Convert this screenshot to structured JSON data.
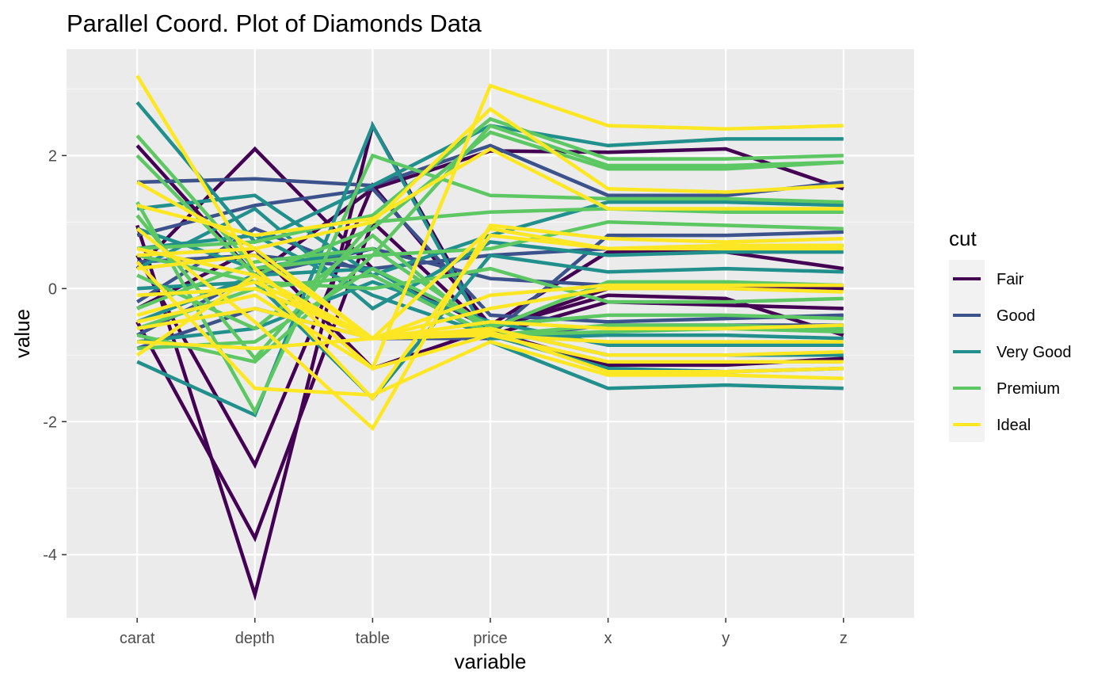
{
  "chart_data": {
    "type": "line",
    "title": "Parallel Coord. Plot of Diamonds Data",
    "xlabel": "variable",
    "ylabel": "value",
    "categories": [
      "carat",
      "depth",
      "table",
      "price",
      "x",
      "y",
      "z"
    ],
    "ylim": [
      -4.95,
      3.6
    ],
    "yticks": [
      -4,
      -2,
      0,
      2
    ],
    "ytick_labels": [
      "-4",
      "-2",
      "0",
      "2"
    ],
    "grid": true,
    "legend": {
      "title": "cut",
      "placement": "right",
      "entries": [
        "Fair",
        "Good",
        "Very Good",
        "Premium",
        "Ideal"
      ]
    },
    "colors": {
      "Fair": "#440154",
      "Good": "#3b528b",
      "Very Good": "#21908c",
      "Premium": "#5dc863",
      "Ideal": "#fde725",
      "panel": "#ebebeb",
      "grid_major": "#ffffff"
    },
    "series": [
      {
        "group": "Fair",
        "values": [
          2.15,
          0.2,
          1.5,
          2.07,
          2.05,
          2.1,
          1.5
        ]
      },
      {
        "group": "Fair",
        "values": [
          0.3,
          2.1,
          0.3,
          -0.6,
          -0.1,
          -0.15,
          -0.7
        ]
      },
      {
        "group": "Fair",
        "values": [
          0.95,
          -4.6,
          2.45,
          -0.7,
          -0.2,
          -0.25,
          -0.3
        ]
      },
      {
        "group": "Fair",
        "values": [
          -0.5,
          -3.75,
          1.0,
          -0.65,
          -1.15,
          -1.15,
          -1.05
        ]
      },
      {
        "group": "Fair",
        "values": [
          0.5,
          -2.65,
          1.55,
          -0.55,
          0.55,
          0.55,
          0.3
        ]
      },
      {
        "group": "Fair",
        "values": [
          -0.3,
          0.6,
          -1.2,
          -0.6,
          0.0,
          0.0,
          0.0
        ]
      },
      {
        "group": "Good",
        "values": [
          1.6,
          1.65,
          1.55,
          2.15,
          1.4,
          1.4,
          1.6
        ]
      },
      {
        "group": "Good",
        "values": [
          0.8,
          1.25,
          1.5,
          -0.4,
          -0.5,
          -0.45,
          -0.4
        ]
      },
      {
        "group": "Good",
        "values": [
          -0.2,
          0.9,
          0.2,
          -0.7,
          0.8,
          0.8,
          0.85
        ]
      },
      {
        "group": "Good",
        "values": [
          -0.9,
          -0.3,
          -0.75,
          -0.75,
          -0.55,
          -0.55,
          -0.55
        ]
      },
      {
        "group": "Good",
        "values": [
          0.4,
          0.5,
          0.3,
          0.5,
          0.6,
          0.6,
          0.65
        ]
      },
      {
        "group": "Good",
        "values": [
          -0.7,
          0.2,
          0.6,
          0.15,
          0.05,
          0.05,
          0.05
        ]
      },
      {
        "group": "Very Good",
        "values": [
          2.8,
          0.7,
          1.55,
          2.45,
          2.15,
          2.25,
          2.25
        ]
      },
      {
        "group": "Very Good",
        "values": [
          1.2,
          1.4,
          0.2,
          0.8,
          1.3,
          1.3,
          1.25
        ]
      },
      {
        "group": "Very Good",
        "values": [
          -1.1,
          -1.9,
          2.45,
          -0.8,
          -1.5,
          -1.45,
          -1.5
        ]
      },
      {
        "group": "Very Good",
        "values": [
          0.6,
          0.8,
          -0.1,
          -0.7,
          -1.2,
          -1.25,
          -1.2
        ]
      },
      {
        "group": "Very Good",
        "values": [
          0.0,
          0.1,
          -1.65,
          0.5,
          0.25,
          0.3,
          0.25
        ]
      },
      {
        "group": "Very Good",
        "values": [
          -0.8,
          -0.6,
          0.1,
          -0.5,
          -0.85,
          -0.85,
          -0.85
        ]
      },
      {
        "group": "Very Good",
        "values": [
          0.9,
          0.3,
          0.6,
          -0.6,
          -1.0,
          -1.0,
          -1.0
        ]
      },
      {
        "group": "Very Good",
        "values": [
          -0.5,
          0.2,
          0.3,
          -0.75,
          -0.7,
          -0.7,
          -0.75
        ]
      },
      {
        "group": "Very Good",
        "values": [
          0.3,
          1.2,
          -0.3,
          0.7,
          0.5,
          0.55,
          0.55
        ]
      },
      {
        "group": "Premium",
        "values": [
          2.3,
          0.3,
          0.5,
          2.45,
          1.85,
          1.85,
          1.9
        ]
      },
      {
        "group": "Premium",
        "values": [
          2.0,
          0.2,
          0.9,
          2.35,
          1.8,
          1.8,
          1.9
        ]
      },
      {
        "group": "Premium",
        "values": [
          1.3,
          -1.85,
          2.0,
          1.4,
          1.35,
          1.35,
          1.3
        ]
      },
      {
        "group": "Premium",
        "values": [
          1.1,
          -1.05,
          1.0,
          1.15,
          1.2,
          1.15,
          1.15
        ]
      },
      {
        "group": "Premium",
        "values": [
          0.6,
          0.7,
          1.1,
          2.55,
          1.95,
          1.95,
          2.0
        ]
      },
      {
        "group": "Premium",
        "values": [
          -0.7,
          -1.1,
          0.5,
          0.6,
          1.0,
          0.95,
          0.9
        ]
      },
      {
        "group": "Premium",
        "values": [
          -0.9,
          -0.8,
          0.3,
          -0.55,
          -0.4,
          -0.4,
          -0.45
        ]
      },
      {
        "group": "Premium",
        "values": [
          0.2,
          -0.6,
          0.8,
          -0.7,
          -0.55,
          -0.55,
          -0.6
        ]
      },
      {
        "group": "Premium",
        "values": [
          0.5,
          0.1,
          0.0,
          0.3,
          -0.2,
          -0.2,
          -0.15
        ]
      },
      {
        "group": "Premium",
        "values": [
          -0.3,
          0.4,
          0.6,
          -0.6,
          0.1,
          0.1,
          0.05
        ]
      },
      {
        "group": "Premium",
        "values": [
          -0.6,
          0.0,
          0.2,
          -0.7,
          -0.65,
          -0.6,
          -0.65
        ]
      },
      {
        "group": "Ideal",
        "values": [
          3.2,
          0.3,
          -1.2,
          3.05,
          2.45,
          2.4,
          2.45
        ]
      },
      {
        "group": "Ideal",
        "values": [
          1.6,
          0.6,
          1.0,
          2.7,
          1.5,
          1.45,
          1.55
        ]
      },
      {
        "group": "Ideal",
        "values": [
          1.25,
          0.8,
          1.05,
          2.1,
          1.2,
          1.2,
          1.2
        ]
      },
      {
        "group": "Ideal",
        "values": [
          0.9,
          -0.5,
          -2.1,
          0.95,
          0.75,
          0.7,
          0.75
        ]
      },
      {
        "group": "Ideal",
        "values": [
          0.6,
          0.2,
          -1.65,
          0.8,
          0.6,
          0.65,
          0.65
        ]
      },
      {
        "group": "Ideal",
        "values": [
          0.4,
          -1.5,
          -1.6,
          -0.8,
          -1.3,
          -1.3,
          -1.35
        ]
      },
      {
        "group": "Ideal",
        "values": [
          0.3,
          0.5,
          -0.75,
          -0.7,
          -1.1,
          -1.1,
          -1.1
        ]
      },
      {
        "group": "Ideal",
        "values": [
          -0.1,
          0.0,
          -0.75,
          -0.6,
          -1.0,
          -1.0,
          -0.95
        ]
      },
      {
        "group": "Ideal",
        "values": [
          -0.4,
          0.1,
          -0.75,
          -0.3,
          0.0,
          0.0,
          -0.05
        ]
      },
      {
        "group": "Ideal",
        "values": [
          -0.6,
          -0.3,
          -0.75,
          -0.1,
          0.05,
          0.05,
          0.05
        ]
      },
      {
        "group": "Ideal",
        "values": [
          -0.8,
          -0.9,
          -0.75,
          -0.5,
          -0.6,
          -0.6,
          -0.55
        ]
      },
      {
        "group": "Ideal",
        "values": [
          -1.0,
          0.2,
          -0.75,
          -0.65,
          -1.25,
          -1.25,
          -1.2
        ]
      },
      {
        "group": "Ideal",
        "values": [
          0.5,
          0.6,
          -0.75,
          0.9,
          0.6,
          0.6,
          0.6
        ]
      },
      {
        "group": "Ideal",
        "values": [
          -0.5,
          -0.1,
          -1.2,
          -0.7,
          -0.8,
          -0.8,
          -0.8
        ]
      }
    ]
  }
}
